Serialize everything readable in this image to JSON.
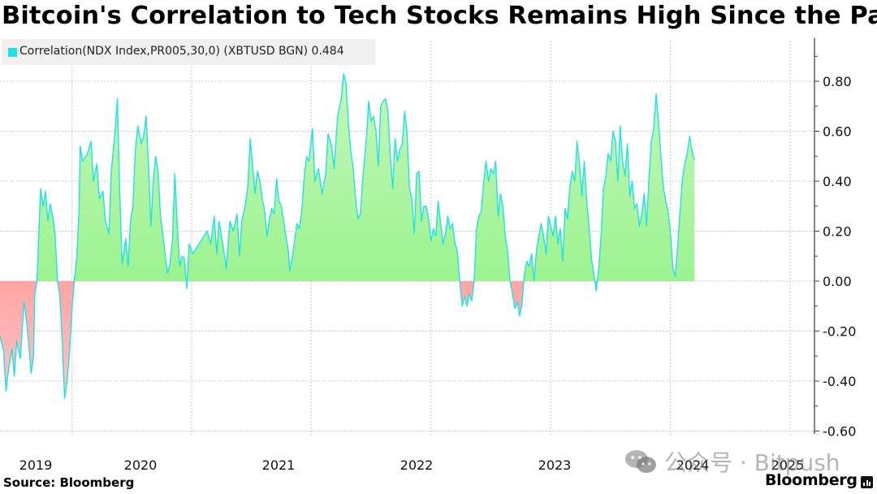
{
  "chart_data": {
    "type": "area",
    "title": "Bitcoin's Correlation to Tech Stocks Remains High Since the Pa",
    "legend": {
      "label": "Correlation(NDX Index,PR005,30,0) (XBTUSD BGN) 0.484",
      "color": "#22e0e8",
      "placement": "top-left"
    },
    "series_name": "Correlation(NDX Index,PR005,30,0) (XBTUSD BGN)",
    "last_value": 0.484,
    "xlabel": "",
    "ylabel": "",
    "ylim": [
      -0.6,
      0.98
    ],
    "xlim": [
      2018.55,
      2025.4
    ],
    "y_ticks": [
      0.8,
      0.6,
      0.4,
      0.2,
      0.0,
      -0.2,
      -0.4,
      -0.6
    ],
    "y_tick_labels": [
      "0.80",
      "0.60",
      "0.40",
      "0.20",
      "0.00",
      "-0.20",
      "-0.40",
      "-0.60"
    ],
    "x_tick_labels": [
      {
        "label": "2019",
        "x": 2019.0
      },
      {
        "label": "2020",
        "x": 2020.0
      },
      {
        "label": "2021",
        "x": 2021.0
      },
      {
        "label": "2022",
        "x": 2022.0
      },
      {
        "label": "2023",
        "x": 2023.0
      },
      {
        "label": "2024",
        "x": 2024.0
      },
      {
        "label": "2025",
        "x": 2025.0
      }
    ],
    "x_gridlines": [
      2019.15,
      2020.15,
      2021.15,
      2022.15,
      2023.15,
      2024.15,
      2025.15
    ],
    "grid": true,
    "positive_fill": [
      "#b8f5b0",
      "#8ef27e"
    ],
    "negative_fill": [
      "#ff7070",
      "#ffb8b8"
    ],
    "line_color": "#22e0e8",
    "points": [
      [
        2018.55,
        -0.22
      ],
      [
        2018.58,
        -0.28
      ],
      [
        2018.6,
        -0.44
      ],
      [
        2018.62,
        -0.36
      ],
      [
        2018.65,
        -0.27
      ],
      [
        2018.67,
        -0.38
      ],
      [
        2018.69,
        -0.24
      ],
      [
        2018.72,
        -0.31
      ],
      [
        2018.75,
        -0.08
      ],
      [
        2018.77,
        -0.15
      ],
      [
        2018.79,
        -0.25
      ],
      [
        2018.81,
        -0.37
      ],
      [
        2018.83,
        -0.3
      ],
      [
        2018.84,
        -0.05
      ],
      [
        2018.86,
        0.0
      ],
      [
        2018.87,
        0.15
      ],
      [
        2018.89,
        0.37
      ],
      [
        2018.91,
        0.3
      ],
      [
        2018.93,
        0.36
      ],
      [
        2018.95,
        0.24
      ],
      [
        2018.97,
        0.31
      ],
      [
        2018.99,
        0.26
      ],
      [
        2019.01,
        0.19
      ],
      [
        2019.03,
        0.0
      ],
      [
        2019.05,
        -0.06
      ],
      [
        2019.07,
        -0.25
      ],
      [
        2019.09,
        -0.47
      ],
      [
        2019.11,
        -0.4
      ],
      [
        2019.13,
        -0.29
      ],
      [
        2019.15,
        -0.12
      ],
      [
        2019.17,
        0.0
      ],
      [
        2019.19,
        0.09
      ],
      [
        2019.21,
        0.28
      ],
      [
        2019.22,
        0.54
      ],
      [
        2019.24,
        0.48
      ],
      [
        2019.28,
        0.51
      ],
      [
        2019.31,
        0.56
      ],
      [
        2019.33,
        0.4
      ],
      [
        2019.36,
        0.47
      ],
      [
        2019.38,
        0.33
      ],
      [
        2019.41,
        0.36
      ],
      [
        2019.43,
        0.24
      ],
      [
        2019.46,
        0.19
      ],
      [
        2019.48,
        0.44
      ],
      [
        2019.51,
        0.59
      ],
      [
        2019.53,
        0.73
      ],
      [
        2019.55,
        0.36
      ],
      [
        2019.57,
        0.07
      ],
      [
        2019.6,
        0.17
      ],
      [
        2019.62,
        0.06
      ],
      [
        2019.64,
        0.24
      ],
      [
        2019.66,
        0.3
      ],
      [
        2019.68,
        0.52
      ],
      [
        2019.7,
        0.62
      ],
      [
        2019.73,
        0.55
      ],
      [
        2019.75,
        0.58
      ],
      [
        2019.77,
        0.66
      ],
      [
        2019.79,
        0.47
      ],
      [
        2019.81,
        0.22
      ],
      [
        2019.83,
        0.4
      ],
      [
        2019.85,
        0.5
      ],
      [
        2019.87,
        0.44
      ],
      [
        2019.89,
        0.26
      ],
      [
        2019.91,
        0.19
      ],
      [
        2019.93,
        0.1
      ],
      [
        2019.95,
        0.03
      ],
      [
        2019.97,
        0.07
      ],
      [
        2019.99,
        0.16
      ],
      [
        2020.01,
        0.43
      ],
      [
        2020.03,
        0.23
      ],
      [
        2020.05,
        0.06
      ],
      [
        2020.07,
        0.1
      ],
      [
        2020.09,
        0.09
      ],
      [
        2020.11,
        -0.03
      ],
      [
        2020.13,
        0.15
      ],
      [
        2020.16,
        0.11
      ],
      [
        2020.2,
        0.14
      ],
      [
        2020.24,
        0.17
      ],
      [
        2020.28,
        0.2
      ],
      [
        2020.31,
        0.15
      ],
      [
        2020.34,
        0.26
      ],
      [
        2020.36,
        0.11
      ],
      [
        2020.38,
        0.24
      ],
      [
        2020.41,
        0.15
      ],
      [
        2020.44,
        0.05
      ],
      [
        2020.47,
        0.24
      ],
      [
        2020.5,
        0.2
      ],
      [
        2020.53,
        0.27
      ],
      [
        2020.55,
        0.1
      ],
      [
        2020.57,
        0.24
      ],
      [
        2020.6,
        0.31
      ],
      [
        2020.62,
        0.38
      ],
      [
        2020.64,
        0.57
      ],
      [
        2020.66,
        0.46
      ],
      [
        2020.68,
        0.35
      ],
      [
        2020.7,
        0.44
      ],
      [
        2020.72,
        0.4
      ],
      [
        2020.74,
        0.33
      ],
      [
        2020.76,
        0.28
      ],
      [
        2020.78,
        0.18
      ],
      [
        2020.8,
        0.25
      ],
      [
        2020.82,
        0.29
      ],
      [
        2020.84,
        0.27
      ],
      [
        2020.86,
        0.41
      ],
      [
        2020.88,
        0.32
      ],
      [
        2020.9,
        0.3
      ],
      [
        2020.92,
        0.24
      ],
      [
        2020.94,
        0.17
      ],
      [
        2020.96,
        0.12
      ],
      [
        2020.97,
        0.04
      ],
      [
        2020.99,
        0.09
      ],
      [
        2021.01,
        0.16
      ],
      [
        2021.03,
        0.23
      ],
      [
        2021.05,
        0.21
      ],
      [
        2021.07,
        0.28
      ],
      [
        2021.09,
        0.41
      ],
      [
        2021.11,
        0.5
      ],
      [
        2021.13,
        0.48
      ],
      [
        2021.16,
        0.61
      ],
      [
        2021.18,
        0.4
      ],
      [
        2021.21,
        0.45
      ],
      [
        2021.24,
        0.35
      ],
      [
        2021.27,
        0.43
      ],
      [
        2021.29,
        0.59
      ],
      [
        2021.32,
        0.54
      ],
      [
        2021.34,
        0.45
      ],
      [
        2021.37,
        0.66
      ],
      [
        2021.4,
        0.73
      ],
      [
        2021.42,
        0.83
      ],
      [
        2021.44,
        0.79
      ],
      [
        2021.46,
        0.63
      ],
      [
        2021.48,
        0.52
      ],
      [
        2021.5,
        0.45
      ],
      [
        2021.52,
        0.33
      ],
      [
        2021.54,
        0.25
      ],
      [
        2021.56,
        0.27
      ],
      [
        2021.58,
        0.41
      ],
      [
        2021.61,
        0.57
      ],
      [
        2021.63,
        0.72
      ],
      [
        2021.65,
        0.64
      ],
      [
        2021.67,
        0.66
      ],
      [
        2021.69,
        0.6
      ],
      [
        2021.71,
        0.46
      ],
      [
        2021.73,
        0.7
      ],
      [
        2021.75,
        0.72
      ],
      [
        2021.77,
        0.73
      ],
      [
        2021.79,
        0.68
      ],
      [
        2021.81,
        0.5
      ],
      [
        2021.83,
        0.37
      ],
      [
        2021.85,
        0.57
      ],
      [
        2021.87,
        0.48
      ],
      [
        2021.89,
        0.53
      ],
      [
        2021.91,
        0.55
      ],
      [
        2021.93,
        0.68
      ],
      [
        2021.95,
        0.59
      ],
      [
        2021.97,
        0.37
      ],
      [
        2021.99,
        0.33
      ],
      [
        2022.01,
        0.19
      ],
      [
        2022.03,
        0.43
      ],
      [
        2022.05,
        0.44
      ],
      [
        2022.07,
        0.24
      ],
      [
        2022.09,
        0.3
      ],
      [
        2022.11,
        0.3
      ],
      [
        2022.13,
        0.25
      ],
      [
        2022.15,
        0.16
      ],
      [
        2022.17,
        0.21
      ],
      [
        2022.19,
        0.18
      ],
      [
        2022.21,
        0.32
      ],
      [
        2022.23,
        0.23
      ],
      [
        2022.25,
        0.15
      ],
      [
        2022.27,
        0.19
      ],
      [
        2022.29,
        0.26
      ],
      [
        2022.31,
        0.21
      ],
      [
        2022.33,
        0.23
      ],
      [
        2022.35,
        0.15
      ],
      [
        2022.37,
        0.12
      ],
      [
        2022.39,
        0.0
      ],
      [
        2022.41,
        -0.1
      ],
      [
        2022.43,
        -0.06
      ],
      [
        2022.45,
        -0.1
      ],
      [
        2022.47,
        -0.05
      ],
      [
        2022.49,
        -0.08
      ],
      [
        2022.51,
        0.0
      ],
      [
        2022.53,
        0.21
      ],
      [
        2022.55,
        0.26
      ],
      [
        2022.57,
        0.28
      ],
      [
        2022.59,
        0.4
      ],
      [
        2022.61,
        0.48
      ],
      [
        2022.63,
        0.4
      ],
      [
        2022.65,
        0.45
      ],
      [
        2022.67,
        0.43
      ],
      [
        2022.69,
        0.48
      ],
      [
        2022.71,
        0.26
      ],
      [
        2022.73,
        0.35
      ],
      [
        2022.75,
        0.3
      ],
      [
        2022.77,
        0.18
      ],
      [
        2022.79,
        0.12
      ],
      [
        2022.81,
        0.0
      ],
      [
        2022.83,
        -0.05
      ],
      [
        2022.85,
        -0.11
      ],
      [
        2022.87,
        -0.08
      ],
      [
        2022.89,
        -0.14
      ],
      [
        2022.91,
        -0.09
      ],
      [
        2022.93,
        0.03
      ],
      [
        2022.95,
        0.08
      ],
      [
        2022.97,
        0.06
      ],
      [
        2022.99,
        0.11
      ],
      [
        2023.01,
        0.0
      ],
      [
        2023.03,
        0.12
      ],
      [
        2023.05,
        0.18
      ],
      [
        2023.07,
        0.23
      ],
      [
        2023.09,
        0.18
      ],
      [
        2023.11,
        0.11
      ],
      [
        2023.13,
        0.26
      ],
      [
        2023.15,
        0.22
      ],
      [
        2023.17,
        0.18
      ],
      [
        2023.19,
        0.26
      ],
      [
        2023.21,
        0.15
      ],
      [
        2023.23,
        0.21
      ],
      [
        2023.25,
        0.08
      ],
      [
        2023.27,
        0.29
      ],
      [
        2023.29,
        0.25
      ],
      [
        2023.31,
        0.38
      ],
      [
        2023.33,
        0.44
      ],
      [
        2023.35,
        0.4
      ],
      [
        2023.37,
        0.56
      ],
      [
        2023.39,
        0.47
      ],
      [
        2023.41,
        0.34
      ],
      [
        2023.43,
        0.48
      ],
      [
        2023.45,
        0.32
      ],
      [
        2023.47,
        0.22
      ],
      [
        2023.49,
        0.09
      ],
      [
        2023.51,
        0.03
      ],
      [
        2023.53,
        -0.04
      ],
      [
        2023.55,
        0.05
      ],
      [
        2023.57,
        0.18
      ],
      [
        2023.59,
        0.37
      ],
      [
        2023.61,
        0.42
      ],
      [
        2023.63,
        0.51
      ],
      [
        2023.65,
        0.48
      ],
      [
        2023.67,
        0.6
      ],
      [
        2023.69,
        0.56
      ],
      [
        2023.71,
        0.4
      ],
      [
        2023.73,
        0.62
      ],
      [
        2023.75,
        0.48
      ],
      [
        2023.77,
        0.42
      ],
      [
        2023.79,
        0.55
      ],
      [
        2023.81,
        0.34
      ],
      [
        2023.83,
        0.4
      ],
      [
        2023.85,
        0.29
      ],
      [
        2023.87,
        0.31
      ],
      [
        2023.89,
        0.22
      ],
      [
        2023.91,
        0.27
      ],
      [
        2023.93,
        0.35
      ],
      [
        2023.95,
        0.22
      ],
      [
        2023.97,
        0.41
      ],
      [
        2023.99,
        0.56
      ],
      [
        2024.01,
        0.61
      ],
      [
        2024.03,
        0.75
      ],
      [
        2024.05,
        0.64
      ],
      [
        2024.07,
        0.5
      ],
      [
        2024.09,
        0.38
      ],
      [
        2024.11,
        0.32
      ],
      [
        2024.13,
        0.28
      ],
      [
        2024.15,
        0.19
      ],
      [
        2024.17,
        0.05
      ],
      [
        2024.19,
        0.02
      ],
      [
        2024.21,
        0.14
      ],
      [
        2024.23,
        0.28
      ],
      [
        2024.25,
        0.41
      ],
      [
        2024.27,
        0.47
      ],
      [
        2024.29,
        0.51
      ],
      [
        2024.31,
        0.58
      ],
      [
        2024.33,
        0.52
      ],
      [
        2024.35,
        0.484
      ]
    ]
  },
  "footer": {
    "source": "Source: Bloomberg",
    "brand": "Bloomberg",
    "watermark": "公众号 · Bitpush"
  }
}
